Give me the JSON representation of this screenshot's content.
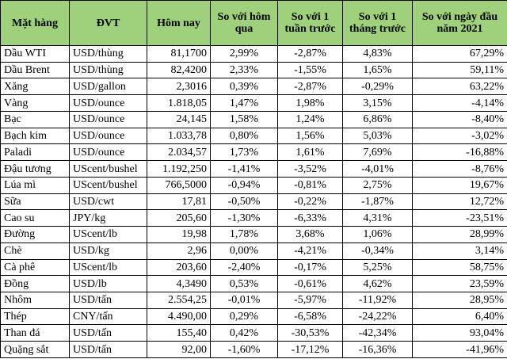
{
  "table": {
    "header": [
      "Mặt hàng",
      "ĐVT",
      "Hôm nay",
      "So với hôm qua",
      "So với 1 tuần trước",
      "So với 1 tháng trước",
      "So với ngày đầu năm 2021"
    ],
    "rows": [
      [
        "Dầu WTI",
        "USD/thùng",
        "81,1700",
        "2,99%",
        "-2,87%",
        "4,83%",
        "67,29%"
      ],
      [
        "Dầu Brent",
        "USD/thùng",
        "82,4200",
        "2,33%",
        "-1,55%",
        "1,65%",
        "59,11%"
      ],
      [
        "Xăng",
        "USD/gallon",
        "2,3016",
        "0,39%",
        "-2,87%",
        "-0,29%",
        "63,22%"
      ],
      [
        "Vàng",
        "USD/ounce",
        "1.818,05",
        "1,47%",
        "1,98%",
        "3,15%",
        "-4,14%"
      ],
      [
        "Bạc",
        "USD/ounce",
        "24,145",
        "1,58%",
        "1,24%",
        "6,86%",
        "-8,40%"
      ],
      [
        "Bạch kim",
        "USD/ounce",
        "1.033,78",
        "0,80%",
        "1,56%",
        "5,03%",
        "-3,02%"
      ],
      [
        "Paladi",
        "USD/ounce",
        "2.034,57",
        "1,73%",
        "1,61%",
        "7,69%",
        "-16,88%"
      ],
      [
        "Đậu tương",
        "UScent/bushel",
        "1.192,250",
        "-1,41%",
        "-3,52%",
        "-4,01%",
        "-8,76%"
      ],
      [
        "Lúa mì",
        "UScent/bushel",
        "766,5000",
        "-0,94%",
        "-0,81%",
        "2,75%",
        "19,67%"
      ],
      [
        "Sữa",
        "USD/cwt",
        "17,81",
        "-0,50%",
        "-0,22%",
        "-1,87%",
        "12,72%"
      ],
      [
        "Cao su",
        "JPY/kg",
        "205,60",
        "-1,30%",
        "-6,33%",
        "4,31%",
        "-23,51%"
      ],
      [
        "Đường",
        "UScent/lb",
        "19,98",
        "1,78%",
        "3,68%",
        "1,06%",
        "28,99%"
      ],
      [
        "Chè",
        "USD/kg",
        "2,96",
        "0,00%",
        "-4,21%",
        "-0,34%",
        "3,14%"
      ],
      [
        "Cà phê",
        "UScent/lb",
        "203,60",
        "-2,40%",
        "-0,17%",
        "5,25%",
        "58,75%"
      ],
      [
        "Đồng",
        "USD/lb",
        "4,3490",
        "0,53%",
        "-0,61%",
        "4,62%",
        "23,59%"
      ],
      [
        "Nhôm",
        "USD/tấn",
        "2.554,25",
        "-0,01%",
        "-5,97%",
        "-11,92%",
        "28,95%"
      ],
      [
        "Thép",
        "CNY/tấn",
        "4.490,00",
        "0,29%",
        "-6,58%",
        "-24,22%",
        "6,40%"
      ],
      [
        "Than đá",
        "USD/tấn",
        "155,40",
        "0,42%",
        "-30,53%",
        "-42,34%",
        "93,04%"
      ],
      [
        "Quặng sắt",
        "USD/tấn",
        "92,00",
        "-1,60%",
        "-17,12%",
        "-16,36%",
        "-41,96%"
      ]
    ]
  }
}
